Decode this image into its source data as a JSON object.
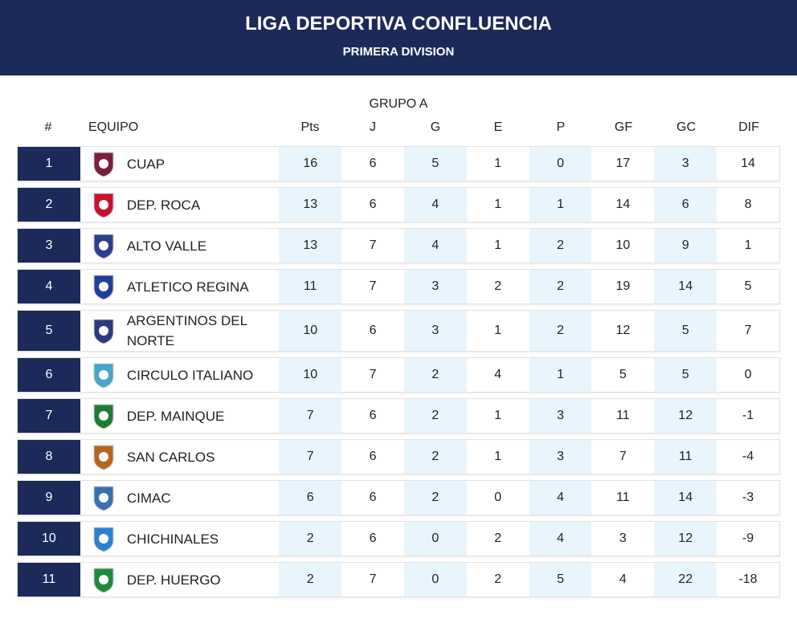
{
  "header": {
    "title": "LIGA DEPORTIVA CONFLUENCIA",
    "subtitle": "PRIMERA DIVISION"
  },
  "table": {
    "group": "GRUPO A",
    "columns": [
      "#",
      "EQUIPO",
      "Pts",
      "J",
      "G",
      "E",
      "P",
      "GF",
      "GC",
      "DIF"
    ],
    "rows": [
      [
        1,
        "CUAP",
        16,
        6,
        5,
        1,
        0,
        17,
        3,
        14
      ],
      [
        2,
        "DEP. ROCA",
        13,
        6,
        4,
        1,
        1,
        14,
        6,
        8
      ],
      [
        3,
        "ALTO VALLE",
        13,
        7,
        4,
        1,
        2,
        10,
        9,
        1
      ],
      [
        4,
        "ATLETICO REGINA",
        11,
        7,
        3,
        2,
        2,
        19,
        14,
        5
      ],
      [
        5,
        "ARGENTINOS DEL NORTE",
        10,
        6,
        3,
        1,
        2,
        12,
        5,
        7
      ],
      [
        6,
        "CIRCULO ITALIANO",
        10,
        7,
        2,
        4,
        1,
        5,
        5,
        0
      ],
      [
        7,
        "DEP. MAINQUE",
        7,
        6,
        2,
        1,
        3,
        11,
        12,
        -1
      ],
      [
        8,
        "SAN CARLOS",
        7,
        6,
        2,
        1,
        3,
        7,
        11,
        -4
      ],
      [
        9,
        "CIMAC",
        6,
        6,
        2,
        0,
        4,
        11,
        14,
        -3
      ],
      [
        10,
        "CHICHINALES",
        2,
        6,
        0,
        2,
        4,
        3,
        12,
        -9
      ],
      [
        11,
        "DEP. HUERGO",
        2,
        7,
        0,
        2,
        5,
        4,
        22,
        -18
      ]
    ]
  }
}
